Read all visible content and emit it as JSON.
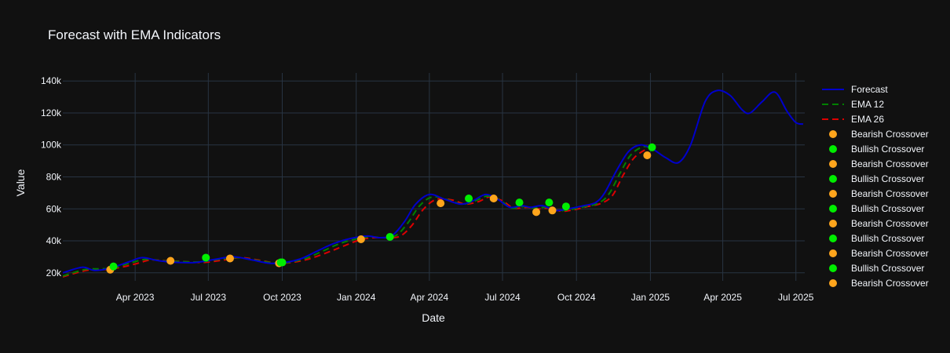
{
  "chart_data": {
    "type": "line",
    "title": "Forecast with EMA Indicators",
    "xlabel": "Date",
    "ylabel": "Value",
    "x_range": [
      "2023-01-01",
      "2025-07-12"
    ],
    "ylim": [
      15000,
      145000
    ],
    "y_ticks": [
      20000,
      40000,
      60000,
      80000,
      100000,
      120000,
      140000
    ],
    "y_tick_labels": [
      "20k",
      "40k",
      "60k",
      "80k",
      "100k",
      "120k",
      "140k"
    ],
    "x_ticks": [
      "2023-04-01",
      "2023-07-01",
      "2023-10-01",
      "2024-01-01",
      "2024-04-01",
      "2024-07-01",
      "2024-10-01",
      "2025-01-01",
      "2025-04-01",
      "2025-07-01"
    ],
    "x_tick_labels": [
      "Apr 2023",
      "Jul 2023",
      "Oct 2023",
      "Jan 2024",
      "Apr 2024",
      "Jul 2024",
      "Oct 2024",
      "Jan 2025",
      "Apr 2025",
      "Jul 2025"
    ],
    "grid": true,
    "legend_position": "right",
    "colors": {
      "forecast": "#0000cc",
      "ema12": "#008000",
      "ema26": "#dd0000",
      "bearish": "#ffa51c",
      "bullish": "#00ee00",
      "background": "#111111",
      "grid": "#283442",
      "text": "#f2f5fa"
    },
    "series": [
      {
        "name": "Forecast",
        "style": "solid",
        "color": "#0000cc",
        "points": [
          [
            "2023-01-01",
            20000
          ],
          [
            "2023-01-25",
            23500
          ],
          [
            "2023-02-10",
            21500
          ],
          [
            "2023-03-01",
            23000
          ],
          [
            "2023-03-25",
            27000
          ],
          [
            "2023-04-10",
            29500
          ],
          [
            "2023-05-01",
            27500
          ],
          [
            "2023-05-25",
            26500
          ],
          [
            "2023-06-15",
            26500
          ],
          [
            "2023-07-10",
            28500
          ],
          [
            "2023-08-01",
            30000
          ],
          [
            "2023-08-25",
            28000
          ],
          [
            "2023-09-15",
            26000
          ],
          [
            "2023-10-05",
            26500
          ],
          [
            "2023-10-25",
            29000
          ],
          [
            "2023-11-15",
            34000
          ],
          [
            "2023-12-05",
            38500
          ],
          [
            "2023-12-25",
            41500
          ],
          [
            "2024-01-15",
            43000
          ],
          [
            "2024-01-30",
            42000
          ],
          [
            "2024-02-15",
            43500
          ],
          [
            "2024-03-01",
            52000
          ],
          [
            "2024-03-15",
            63000
          ],
          [
            "2024-04-01",
            69000
          ],
          [
            "2024-04-20",
            66000
          ],
          [
            "2024-05-10",
            63000
          ],
          [
            "2024-05-25",
            65000
          ],
          [
            "2024-06-10",
            69000
          ],
          [
            "2024-06-25",
            66000
          ],
          [
            "2024-07-10",
            61000
          ],
          [
            "2024-07-25",
            62000
          ],
          [
            "2024-08-05",
            61000
          ],
          [
            "2024-08-20",
            62000
          ],
          [
            "2024-09-05",
            59000
          ],
          [
            "2024-09-20",
            60000
          ],
          [
            "2024-10-10",
            62000
          ],
          [
            "2024-10-25",
            64000
          ],
          [
            "2024-11-05",
            70000
          ],
          [
            "2024-11-20",
            84000
          ],
          [
            "2024-12-05",
            96000
          ],
          [
            "2024-12-20",
            100000
          ],
          [
            "2025-01-05",
            97000
          ],
          [
            "2025-01-20",
            92000
          ],
          [
            "2025-02-05",
            89000
          ],
          [
            "2025-02-20",
            100000
          ],
          [
            "2025-03-10",
            127000
          ],
          [
            "2025-03-25",
            134000
          ],
          [
            "2025-04-10",
            131000
          ],
          [
            "2025-04-25",
            122000
          ],
          [
            "2025-05-05",
            120000
          ],
          [
            "2025-05-20",
            127000
          ],
          [
            "2025-06-05",
            133000
          ],
          [
            "2025-06-20",
            121000
          ],
          [
            "2025-07-01",
            114000
          ],
          [
            "2025-07-10",
            113000
          ]
        ]
      },
      {
        "name": "EMA 12",
        "style": "dash",
        "color": "#008000",
        "points": [
          [
            "2023-01-01",
            18000
          ],
          [
            "2023-01-28",
            22000
          ],
          [
            "2023-02-15",
            22500
          ],
          [
            "2023-03-05",
            23000
          ],
          [
            "2023-03-28",
            26500
          ],
          [
            "2023-04-15",
            28500
          ],
          [
            "2023-05-05",
            27500
          ],
          [
            "2023-05-28",
            27000
          ],
          [
            "2023-06-20",
            26800
          ],
          [
            "2023-07-15",
            28500
          ],
          [
            "2023-08-05",
            29500
          ],
          [
            "2023-08-28",
            28000
          ],
          [
            "2023-09-20",
            26200
          ],
          [
            "2023-10-08",
            26500
          ],
          [
            "2023-10-30",
            29000
          ],
          [
            "2023-11-20",
            33500
          ],
          [
            "2023-12-10",
            38000
          ],
          [
            "2023-12-30",
            41000
          ],
          [
            "2024-01-18",
            42500
          ],
          [
            "2024-02-05",
            42000
          ],
          [
            "2024-02-20",
            43500
          ],
          [
            "2024-03-05",
            51000
          ],
          [
            "2024-03-20",
            62000
          ],
          [
            "2024-04-05",
            67500
          ],
          [
            "2024-04-25",
            65500
          ],
          [
            "2024-05-12",
            63000
          ],
          [
            "2024-05-28",
            65000
          ],
          [
            "2024-06-12",
            68000
          ],
          [
            "2024-06-28",
            65500
          ],
          [
            "2024-07-12",
            60500
          ],
          [
            "2024-07-28",
            61500
          ],
          [
            "2024-08-10",
            60500
          ],
          [
            "2024-08-25",
            61000
          ],
          [
            "2024-09-08",
            59000
          ],
          [
            "2024-09-22",
            59500
          ],
          [
            "2024-10-12",
            61500
          ],
          [
            "2024-10-28",
            63500
          ],
          [
            "2024-11-10",
            69000
          ],
          [
            "2024-11-25",
            83000
          ],
          [
            "2024-12-08",
            94000
          ],
          [
            "2024-12-24",
            99000
          ],
          [
            "2025-01-03",
            97000
          ]
        ]
      },
      {
        "name": "EMA 26",
        "style": "dash",
        "color": "#dd0000",
        "points": [
          [
            "2023-01-01",
            17500
          ],
          [
            "2023-01-30",
            21500
          ],
          [
            "2023-02-20",
            22000
          ],
          [
            "2023-03-10",
            23000
          ],
          [
            "2023-04-01",
            25500
          ],
          [
            "2023-04-20",
            28000
          ],
          [
            "2023-05-10",
            27500
          ],
          [
            "2023-06-01",
            27000
          ],
          [
            "2023-06-25",
            26500
          ],
          [
            "2023-07-20",
            28000
          ],
          [
            "2023-08-10",
            29500
          ],
          [
            "2023-09-01",
            28000
          ],
          [
            "2023-09-25",
            26000
          ],
          [
            "2023-10-12",
            26500
          ],
          [
            "2023-11-02",
            28500
          ],
          [
            "2023-11-25",
            32500
          ],
          [
            "2023-12-15",
            36500
          ],
          [
            "2024-01-05",
            40500
          ],
          [
            "2024-01-22",
            42000
          ],
          [
            "2024-02-10",
            42000
          ],
          [
            "2024-02-25",
            43000
          ],
          [
            "2024-03-10",
            49500
          ],
          [
            "2024-03-25",
            60000
          ],
          [
            "2024-04-10",
            66000
          ],
          [
            "2024-04-30",
            65500
          ],
          [
            "2024-05-15",
            63000
          ],
          [
            "2024-06-01",
            64500
          ],
          [
            "2024-06-15",
            67500
          ],
          [
            "2024-07-01",
            65000
          ],
          [
            "2024-07-15",
            60500
          ],
          [
            "2024-08-01",
            61000
          ],
          [
            "2024-08-15",
            60000
          ],
          [
            "2024-08-30",
            60500
          ],
          [
            "2024-09-12",
            58500
          ],
          [
            "2024-09-28",
            59500
          ],
          [
            "2024-10-15",
            61500
          ],
          [
            "2024-11-01",
            63500
          ],
          [
            "2024-11-15",
            68500
          ],
          [
            "2024-11-28",
            81000
          ],
          [
            "2024-12-12",
            92000
          ],
          [
            "2024-12-28",
            97500
          ],
          [
            "2025-01-03",
            97000
          ]
        ]
      }
    ],
    "crossovers": [
      {
        "name": "Bearish Crossover",
        "type": "bearish",
        "x": "2023-03-01",
        "y": 22000
      },
      {
        "name": "Bullish Crossover",
        "type": "bullish",
        "x": "2023-03-05",
        "y": 24000
      },
      {
        "name": "Bearish Crossover",
        "type": "bearish",
        "x": "2023-05-15",
        "y": 27500
      },
      {
        "name": "Bullish Crossover",
        "type": "bullish",
        "x": "2023-06-28",
        "y": 29500
      },
      {
        "name": "Bearish Crossover",
        "type": "bearish",
        "x": "2023-07-28",
        "y": 29000
      },
      {
        "name": "Bearish Crossover",
        "type": "bearish",
        "x": "2023-09-27",
        "y": 26000
      },
      {
        "name": "Bullish Crossover",
        "type": "bullish",
        "x": "2023-09-29",
        "y": 26500
      },
      {
        "name": "Bullish Crossover",
        "type": "bullish",
        "x": "2023-10-01",
        "y": 26500
      },
      {
        "name": "Bearish Crossover",
        "type": "bearish",
        "x": "2024-01-07",
        "y": 41000
      },
      {
        "name": "Bullish Crossover",
        "type": "bullish",
        "x": "2024-02-12",
        "y": 42500
      },
      {
        "name": "Bearish Crossover",
        "type": "bearish",
        "x": "2024-04-15",
        "y": 63500
      },
      {
        "name": "Bullish Crossover",
        "type": "bullish",
        "x": "2024-05-20",
        "y": 66500
      },
      {
        "name": "Bearish Crossover",
        "type": "bearish",
        "x": "2024-06-20",
        "y": 66500
      },
      {
        "name": "Bullish Crossover",
        "type": "bullish",
        "x": "2024-07-22",
        "y": 64000
      },
      {
        "name": "Bearish Crossover",
        "type": "bearish",
        "x": "2024-08-12",
        "y": 58000
      },
      {
        "name": "Bullish Crossover",
        "type": "bullish",
        "x": "2024-08-28",
        "y": 64000
      },
      {
        "name": "Bearish Crossover",
        "type": "bearish",
        "x": "2024-09-01",
        "y": 59000
      },
      {
        "name": "Bullish Crossover",
        "type": "bullish",
        "x": "2024-09-18",
        "y": 61500
      },
      {
        "name": "Bearish Crossover",
        "type": "bearish",
        "x": "2024-12-28",
        "y": 93500
      },
      {
        "name": "Bullish Crossover",
        "type": "bullish",
        "x": "2025-01-03",
        "y": 98500
      }
    ],
    "legend": [
      {
        "label": "Forecast",
        "kind": "line",
        "style": "solid",
        "color": "#0000cc"
      },
      {
        "label": "EMA 12",
        "kind": "line",
        "style": "dash",
        "color": "#008000"
      },
      {
        "label": "EMA 26",
        "kind": "line",
        "style": "dash",
        "color": "#dd0000"
      },
      {
        "label": "Bearish Crossover",
        "kind": "marker",
        "color": "#ffa51c"
      },
      {
        "label": "Bullish Crossover",
        "kind": "marker",
        "color": "#00ee00"
      },
      {
        "label": "Bearish Crossover",
        "kind": "marker",
        "color": "#ffa51c"
      },
      {
        "label": "Bullish Crossover",
        "kind": "marker",
        "color": "#00ee00"
      },
      {
        "label": "Bearish Crossover",
        "kind": "marker",
        "color": "#ffa51c"
      },
      {
        "label": "Bullish Crossover",
        "kind": "marker",
        "color": "#00ee00"
      },
      {
        "label": "Bearish Crossover",
        "kind": "marker",
        "color": "#ffa51c"
      },
      {
        "label": "Bullish Crossover",
        "kind": "marker",
        "color": "#00ee00"
      },
      {
        "label": "Bearish Crossover",
        "kind": "marker",
        "color": "#ffa51c"
      },
      {
        "label": "Bullish Crossover",
        "kind": "marker",
        "color": "#00ee00"
      },
      {
        "label": "Bearish Crossover",
        "kind": "marker",
        "color": "#ffa51c"
      }
    ]
  }
}
